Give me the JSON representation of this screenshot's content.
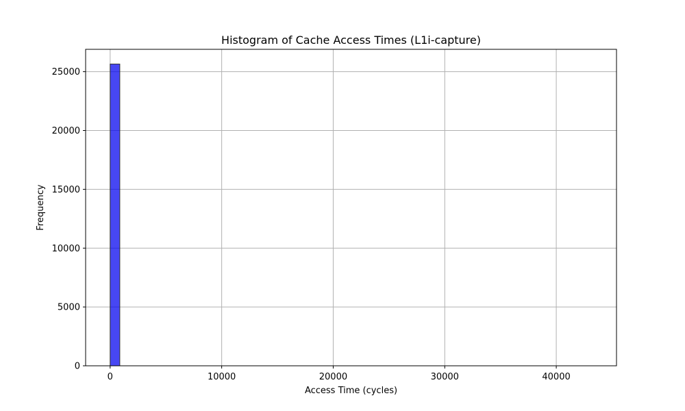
{
  "chart_data": {
    "type": "bar",
    "title": "Histogram of Cache Access Times (L1i-capture)",
    "xlabel": "Access Time (cycles)",
    "ylabel": "Frequency",
    "xlim": [
      -2200,
      45400
    ],
    "ylim": [
      0,
      26900
    ],
    "xticks": [
      0,
      10000,
      20000,
      30000,
      40000
    ],
    "yticks": [
      0,
      5000,
      10000,
      15000,
      20000,
      25000
    ],
    "grid": true,
    "bar_color": "#0000ee",
    "bar_edge_color": "#333333",
    "bin_width": 864,
    "bins": [
      {
        "start": 0,
        "count": 25650
      },
      {
        "start": 864,
        "count": 0
      },
      {
        "start": 42336,
        "count": 0
      }
    ]
  }
}
